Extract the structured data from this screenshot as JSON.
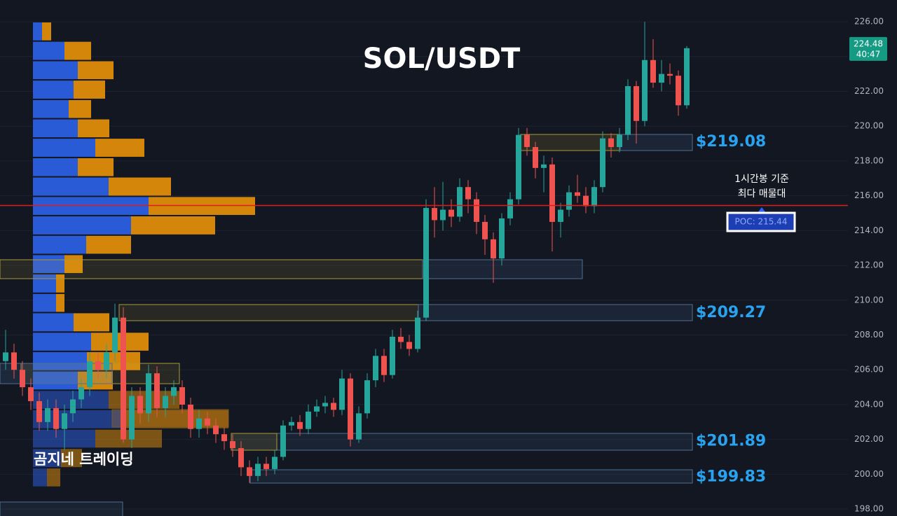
{
  "chart_data": {
    "type": "candlestick",
    "title": "SOL/USDT",
    "watermark": "곰지네 트레이딩",
    "annotations": [
      "1시간봉 기준",
      "최다 매물대"
    ],
    "poc": 215.44,
    "poc_label": "POC: 215.44",
    "last_price": 224.48,
    "countdown": "40:47",
    "levels": [
      {
        "value": 219.08,
        "label": "$219.08"
      },
      {
        "value": 209.27,
        "label": "$209.27"
      },
      {
        "value": 201.89,
        "label": "$201.89"
      },
      {
        "value": 199.83,
        "label": "$199.83"
      }
    ],
    "up_color": "#26a69a",
    "down_color": "#ef5350",
    "ylim": [
      197.6,
      227.25
    ],
    "yticks": [
      {
        "value": 198,
        "label": "198.00"
      },
      {
        "value": 200,
        "label": "200.00"
      },
      {
        "value": 202,
        "label": "202.00"
      },
      {
        "value": 204,
        "label": "204.00"
      },
      {
        "value": 206,
        "label": "206.00"
      },
      {
        "value": 208,
        "label": "208.00"
      },
      {
        "value": 210,
        "label": "210.00"
      },
      {
        "value": 212,
        "label": "212.00"
      },
      {
        "value": 214,
        "label": "214.00"
      },
      {
        "value": 216,
        "label": "216.00"
      },
      {
        "value": 218,
        "label": "218.00"
      },
      {
        "value": 220,
        "label": "220.00"
      },
      {
        "value": 222,
        "label": "222.00"
      },
      {
        "value": 224,
        "label": "224.00"
      },
      {
        "value": 226,
        "label": "226.00"
      }
    ],
    "grid": true,
    "open": [
      206.5,
      207.0,
      206.0,
      205.0,
      204.2,
      203.0,
      203.8,
      202.6,
      203.5,
      204.3,
      205.0,
      206.5,
      206.0,
      207.0,
      209.0,
      202.0,
      204.5,
      203.5,
      205.8,
      203.8,
      204.5,
      205.0,
      204.0,
      202.6,
      203.2,
      202.8,
      202.3,
      201.9,
      201.5,
      200.4,
      199.9,
      200.6,
      200.3,
      201.0,
      202.8,
      203.0,
      202.6,
      203.6,
      203.9,
      204.1,
      203.7,
      205.5,
      202.0,
      203.5,
      205.4,
      206.8,
      205.7,
      207.9,
      207.6,
      207.2,
      209.0,
      215.3,
      214.6,
      215.2,
      214.8,
      216.5,
      215.8,
      214.5,
      213.5,
      212.4,
      214.7,
      215.8,
      219.5,
      218.8,
      217.6,
      217.8,
      214.5,
      215.2,
      216.2,
      216.0,
      215.4,
      216.5,
      219.3,
      218.8,
      219.5,
      222.3,
      220.3,
      223.8,
      222.5,
      223.0,
      222.9,
      221.2
    ],
    "close": [
      207.0,
      206.0,
      205.0,
      204.2,
      203.0,
      203.8,
      202.6,
      203.5,
      204.3,
      205.0,
      206.5,
      206.0,
      207.0,
      209.0,
      202.0,
      204.5,
      203.5,
      205.8,
      203.8,
      204.5,
      205.0,
      204.0,
      202.6,
      203.2,
      202.8,
      202.3,
      201.9,
      201.5,
      200.4,
      199.9,
      200.6,
      200.3,
      201.0,
      202.8,
      203.0,
      202.6,
      203.6,
      203.9,
      204.1,
      203.7,
      205.5,
      202.0,
      203.5,
      205.4,
      206.8,
      205.7,
      207.9,
      207.6,
      207.2,
      209.0,
      215.3,
      214.6,
      215.2,
      214.8,
      216.5,
      215.8,
      214.5,
      213.5,
      212.4,
      214.7,
      215.8,
      219.5,
      218.8,
      217.6,
      217.8,
      214.5,
      215.2,
      216.2,
      216.0,
      215.4,
      216.5,
      219.3,
      218.8,
      219.5,
      222.3,
      220.3,
      223.8,
      222.5,
      223.0,
      222.9,
      221.2,
      224.48
    ],
    "high": [
      208.3,
      207.5,
      206.5,
      205.5,
      204.7,
      204.3,
      204.3,
      204.0,
      204.8,
      205.5,
      207.0,
      207.0,
      207.5,
      209.8,
      209.6,
      205.0,
      205.0,
      206.3,
      206.2,
      205.0,
      205.4,
      205.4,
      204.4,
      203.7,
      203.6,
      203.2,
      202.7,
      202.3,
      201.9,
      200.8,
      201.0,
      201.0,
      201.4,
      203.1,
      203.3,
      203.4,
      204.0,
      204.3,
      204.5,
      204.4,
      206.0,
      205.8,
      203.9,
      205.8,
      207.2,
      207.2,
      208.3,
      208.4,
      208.0,
      209.4,
      215.8,
      216.5,
      216.8,
      215.8,
      217.0,
      216.9,
      216.2,
      214.9,
      213.9,
      215.0,
      216.2,
      219.9,
      219.9,
      219.1,
      218.3,
      218.2,
      215.6,
      216.6,
      217.2,
      216.5,
      216.9,
      219.7,
      219.6,
      219.9,
      222.7,
      222.6,
      226.0,
      225.0,
      223.8,
      223.6,
      223.2,
      224.6
    ],
    "low": [
      206.0,
      205.5,
      204.5,
      203.7,
      202.5,
      202.5,
      202.1,
      201.4,
      203.0,
      203.8,
      204.5,
      205.5,
      205.5,
      206.5,
      201.8,
      201.5,
      202.9,
      203.0,
      203.3,
      203.3,
      204.0,
      203.5,
      202.1,
      202.1,
      202.3,
      201.8,
      201.4,
      201.0,
      199.9,
      199.5,
      199.6,
      199.9,
      200.0,
      200.8,
      202.5,
      202.2,
      202.3,
      203.3,
      203.5,
      203.3,
      203.4,
      201.6,
      201.8,
      203.2,
      205.0,
      205.3,
      205.5,
      207.2,
      206.8,
      207.0,
      208.8,
      213.6,
      214.0,
      214.2,
      214.5,
      215.0,
      213.8,
      212.6,
      211.0,
      212.0,
      214.3,
      215.5,
      218.3,
      217.0,
      216.2,
      212.8,
      213.6,
      214.8,
      215.6,
      215.0,
      215.0,
      216.2,
      218.2,
      218.5,
      219.2,
      219.0,
      220.0,
      222.2,
      222.0,
      222.4,
      220.6,
      221.0
    ],
    "profile": {
      "bins": [
        226.0,
        224.89,
        223.77,
        222.66,
        221.54,
        220.43,
        219.32,
        218.2,
        217.09,
        215.97,
        214.86,
        213.74,
        212.63,
        211.52,
        210.4,
        209.29,
        208.17,
        207.06,
        205.94,
        204.83,
        203.72,
        202.6,
        201.49,
        200.37,
        199.26
      ],
      "series": [
        {
          "color": "#2a5bd7",
          "values": [
            13,
            45,
            64,
            58,
            51,
            64,
            89,
            64,
            108,
            165,
            140,
            76,
            45,
            33,
            33,
            58,
            83,
            77,
            64,
            108,
            127,
            89,
            40,
            20
          ]
        },
        {
          "color": "#d4860b",
          "values": [
            13,
            38,
            51,
            45,
            32,
            45,
            70,
            51,
            89,
            152,
            120,
            64,
            26,
            12,
            12,
            51,
            82,
            76,
            50,
            101,
            152,
            95,
            30,
            19
          ]
        }
      ]
    }
  }
}
